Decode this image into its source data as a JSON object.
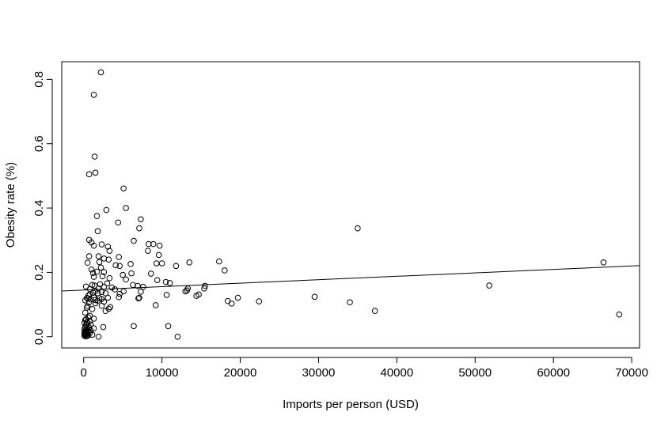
{
  "chart_data": {
    "type": "scatter",
    "title": "",
    "xlabel": "Imports per person (USD)",
    "ylabel": "Obesity rate (%)",
    "xlim": [
      -2800,
      71000
    ],
    "ylim": [
      -0.035,
      0.855
    ],
    "x_ticks": [
      0,
      10000,
      20000,
      30000,
      40000,
      50000,
      60000,
      70000
    ],
    "y_ticks": [
      0.0,
      0.2,
      0.4,
      0.6,
      0.8
    ],
    "y_tick_labels": [
      "0.0",
      "0.2",
      "0.4",
      "0.6",
      "0.8"
    ],
    "grid": false,
    "legend": "none",
    "point_style": "open circle",
    "colors": {
      "points": "#000000",
      "line": "#000000",
      "frame": "#000000",
      "background": "#ffffff"
    },
    "regression_line": {
      "x": [
        -2800,
        71000
      ],
      "y": [
        0.142,
        0.221
      ]
    },
    "points": [
      [
        2200,
        0.822
      ],
      [
        1300,
        0.752
      ],
      [
        1400,
        0.56
      ],
      [
        1500,
        0.51
      ],
      [
        700,
        0.505
      ],
      [
        5100,
        0.461
      ],
      [
        5400,
        0.4
      ],
      [
        2900,
        0.394
      ],
      [
        1700,
        0.375
      ],
      [
        7300,
        0.365
      ],
      [
        4400,
        0.355
      ],
      [
        35000,
        0.337
      ],
      [
        7100,
        0.337
      ],
      [
        1800,
        0.328
      ],
      [
        700,
        0.301
      ],
      [
        1000,
        0.293
      ],
      [
        6400,
        0.298
      ],
      [
        8300,
        0.288
      ],
      [
        8900,
        0.288
      ],
      [
        9700,
        0.283
      ],
      [
        2300,
        0.287
      ],
      [
        1300,
        0.283
      ],
      [
        3100,
        0.28
      ],
      [
        3300,
        0.267
      ],
      [
        8200,
        0.267
      ],
      [
        9600,
        0.254
      ],
      [
        4500,
        0.248
      ],
      [
        700,
        0.25
      ],
      [
        1900,
        0.25
      ],
      [
        2600,
        0.243
      ],
      [
        3200,
        0.24
      ],
      [
        17300,
        0.234
      ],
      [
        13500,
        0.231
      ],
      [
        66400,
        0.231
      ],
      [
        10000,
        0.228
      ],
      [
        9300,
        0.228
      ],
      [
        2000,
        0.232
      ],
      [
        500,
        0.23
      ],
      [
        6000,
        0.226
      ],
      [
        4100,
        0.222
      ],
      [
        11800,
        0.22
      ],
      [
        4600,
        0.22
      ],
      [
        2200,
        0.215
      ],
      [
        1000,
        0.209
      ],
      [
        1700,
        0.202
      ],
      [
        18000,
        0.206
      ],
      [
        2600,
        0.201
      ],
      [
        1200,
        0.198
      ],
      [
        6100,
        0.197
      ],
      [
        8600,
        0.196
      ],
      [
        5000,
        0.192
      ],
      [
        2400,
        0.188
      ],
      [
        1300,
        0.186
      ],
      [
        3300,
        0.182
      ],
      [
        5400,
        0.178
      ],
      [
        9400,
        0.176
      ],
      [
        10500,
        0.17
      ],
      [
        3000,
        0.166
      ],
      [
        11000,
        0.167
      ],
      [
        2100,
        0.163
      ],
      [
        6300,
        0.161
      ],
      [
        1100,
        0.161
      ],
      [
        1400,
        0.159
      ],
      [
        15500,
        0.158
      ],
      [
        300,
        0.156
      ],
      [
        6900,
        0.158
      ],
      [
        51800,
        0.159
      ],
      [
        2600,
        0.155
      ],
      [
        3600,
        0.153
      ],
      [
        7600,
        0.155
      ],
      [
        13300,
        0.15
      ],
      [
        15400,
        0.15
      ],
      [
        1900,
        0.15
      ],
      [
        800,
        0.148
      ],
      [
        4000,
        0.147
      ],
      [
        13200,
        0.144
      ],
      [
        1500,
        0.142
      ],
      [
        5100,
        0.141
      ],
      [
        2300,
        0.139
      ],
      [
        13000,
        0.141
      ],
      [
        7300,
        0.14
      ],
      [
        1200,
        0.137
      ],
      [
        1800,
        0.135
      ],
      [
        2800,
        0.135
      ],
      [
        4600,
        0.133
      ],
      [
        800,
        0.132
      ],
      [
        14700,
        0.131
      ],
      [
        10600,
        0.13
      ],
      [
        14400,
        0.127
      ],
      [
        600,
        0.128
      ],
      [
        29500,
        0.124
      ],
      [
        4500,
        0.123
      ],
      [
        3100,
        0.121
      ],
      [
        2000,
        0.12
      ],
      [
        1300,
        0.122
      ],
      [
        600,
        0.119
      ],
      [
        400,
        0.12
      ],
      [
        7100,
        0.121
      ],
      [
        19700,
        0.121
      ],
      [
        7000,
        0.119
      ],
      [
        2300,
        0.117
      ],
      [
        1500,
        0.114
      ],
      [
        900,
        0.116
      ],
      [
        200,
        0.113
      ],
      [
        1800,
        0.112
      ],
      [
        18400,
        0.111
      ],
      [
        22400,
        0.11
      ],
      [
        34000,
        0.107
      ],
      [
        2600,
        0.109
      ],
      [
        700,
        0.107
      ],
      [
        1500,
        0.104
      ],
      [
        18900,
        0.103
      ],
      [
        9200,
        0.098
      ],
      [
        2300,
        0.096
      ],
      [
        500,
        0.095
      ],
      [
        3400,
        0.092
      ],
      [
        400,
        0.09
      ],
      [
        1100,
        0.086
      ],
      [
        3200,
        0.087
      ],
      [
        2800,
        0.08
      ],
      [
        37200,
        0.08
      ],
      [
        200,
        0.075
      ],
      [
        68400,
        0.069
      ],
      [
        800,
        0.065
      ],
      [
        600,
        0.06
      ],
      [
        1300,
        0.056
      ],
      [
        300,
        0.054
      ],
      [
        200,
        0.052
      ],
      [
        800,
        0.048
      ],
      [
        400,
        0.045
      ],
      [
        100,
        0.043
      ],
      [
        500,
        0.041
      ],
      [
        900,
        0.038
      ],
      [
        300,
        0.036
      ],
      [
        6400,
        0.033
      ],
      [
        10800,
        0.033
      ],
      [
        2500,
        0.03
      ],
      [
        200,
        0.031
      ],
      [
        700,
        0.029
      ],
      [
        1300,
        0.026
      ],
      [
        100,
        0.024
      ],
      [
        500,
        0.022
      ],
      [
        300,
        0.021
      ],
      [
        900,
        0.02
      ],
      [
        200,
        0.019
      ],
      [
        400,
        0.017
      ],
      [
        600,
        0.016
      ],
      [
        100,
        0.014
      ],
      [
        300,
        0.013
      ],
      [
        800,
        0.012
      ],
      [
        200,
        0.011
      ],
      [
        500,
        0.01
      ],
      [
        100,
        0.009
      ],
      [
        400,
        0.008
      ],
      [
        300,
        0.007
      ],
      [
        1100,
        0.006
      ],
      [
        200,
        0.005
      ],
      [
        600,
        0.004
      ],
      [
        100,
        0.003
      ],
      [
        12000,
        0.0
      ],
      [
        1900,
        0.0
      ],
      [
        400,
        0.002
      ],
      [
        300,
        0.001
      ]
    ]
  }
}
